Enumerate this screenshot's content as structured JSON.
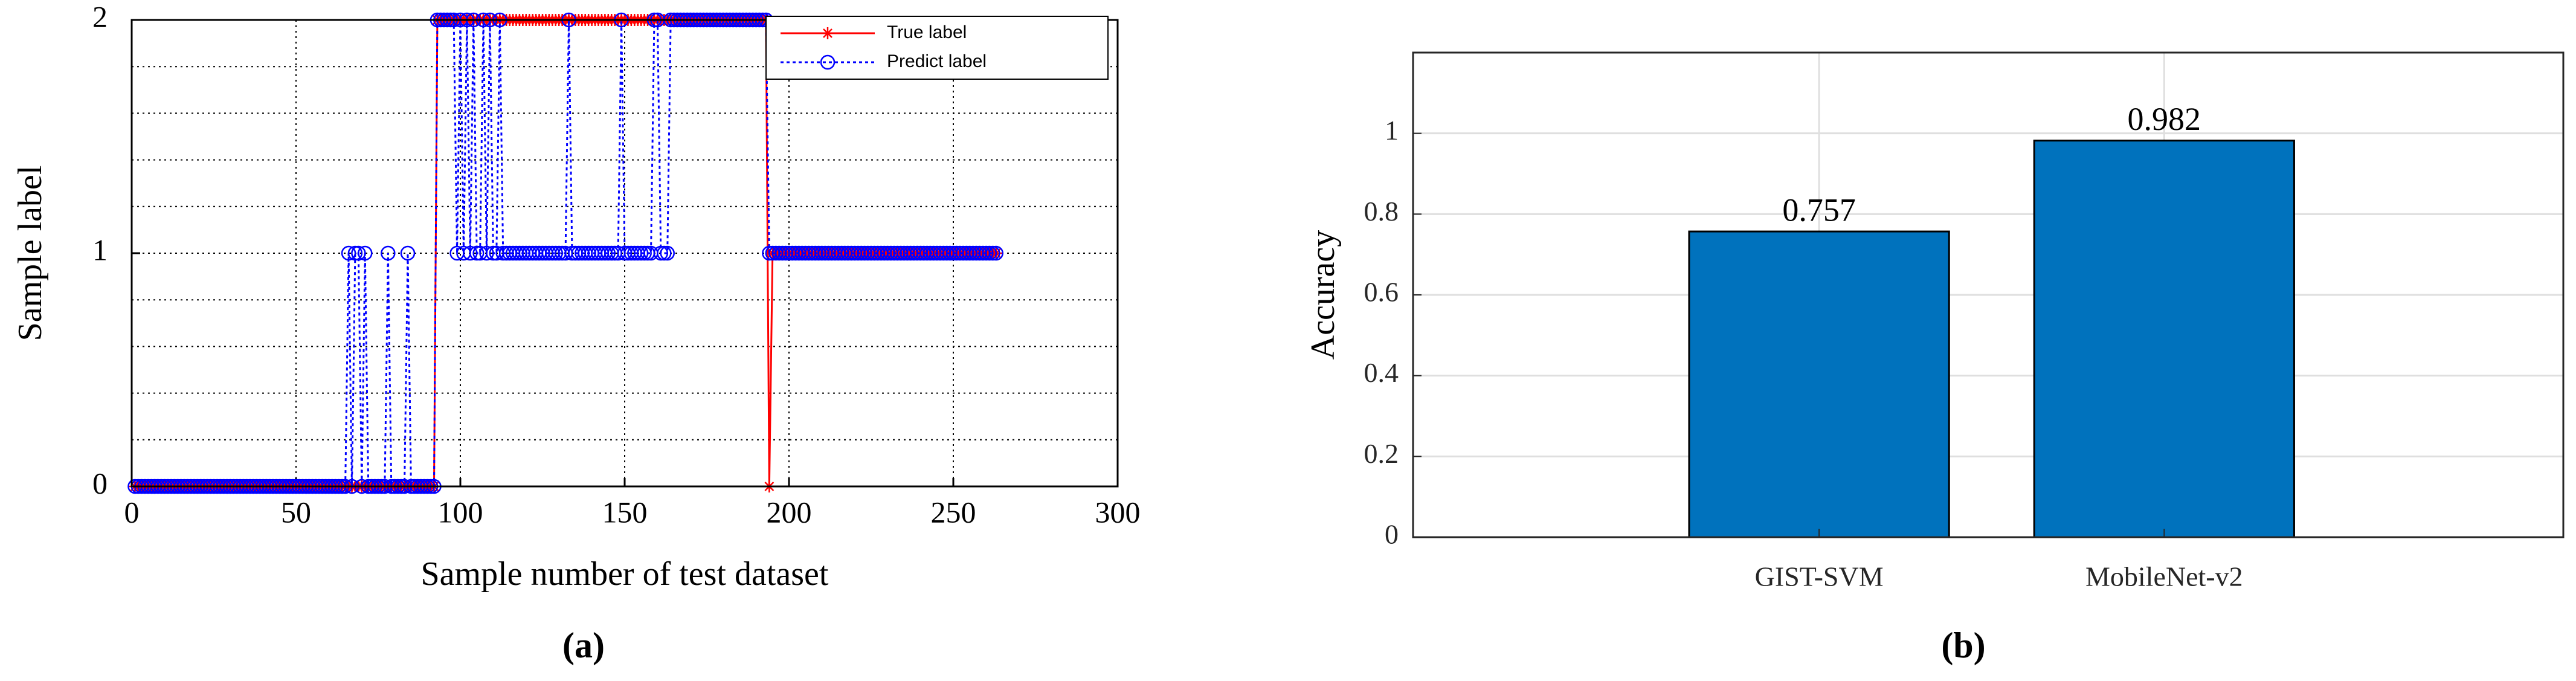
{
  "chart_data": [
    {
      "type": "line",
      "xlabel": "Sample number of test dataset",
      "ylabel": "Sample label",
      "caption": "(a)",
      "xlim": [
        0,
        300
      ],
      "xticks": [
        0,
        50,
        100,
        150,
        200,
        250,
        300
      ],
      "ylim": [
        0,
        2
      ],
      "yticks": [
        0,
        1,
        2
      ],
      "y_minor_ticks": [
        0.2,
        0.4,
        0.6,
        0.8,
        1.2,
        1.4,
        1.6,
        1.8
      ],
      "grid": true,
      "legend": "upper right",
      "x": [
        1,
        2,
        3,
        4,
        5,
        6,
        7,
        8,
        9,
        10,
        11,
        12,
        13,
        14,
        15,
        16,
        17,
        18,
        19,
        20,
        21,
        22,
        23,
        24,
        25,
        26,
        27,
        28,
        29,
        30,
        31,
        32,
        33,
        34,
        35,
        36,
        37,
        38,
        39,
        40,
        41,
        42,
        43,
        44,
        45,
        46,
        47,
        48,
        49,
        50,
        51,
        52,
        53,
        54,
        55,
        56,
        57,
        58,
        59,
        60,
        61,
        62,
        63,
        64,
        65,
        66,
        67,
        68,
        69,
        70,
        71,
        72,
        73,
        74,
        75,
        76,
        77,
        78,
        79,
        80,
        81,
        82,
        83,
        84,
        85,
        86,
        87,
        88,
        89,
        90,
        91,
        92,
        93,
        94,
        95,
        96,
        97,
        98,
        99,
        100,
        101,
        102,
        103,
        104,
        105,
        106,
        107,
        108,
        109,
        110,
        111,
        112,
        113,
        114,
        115,
        116,
        117,
        118,
        119,
        120,
        121,
        122,
        123,
        124,
        125,
        126,
        127,
        128,
        129,
        130,
        131,
        132,
        133,
        134,
        135,
        136,
        137,
        138,
        139,
        140,
        141,
        142,
        143,
        144,
        145,
        146,
        147,
        148,
        149,
        150,
        151,
        152,
        153,
        154,
        155,
        156,
        157,
        158,
        159,
        160,
        161,
        162,
        163,
        164,
        165,
        166,
        167,
        168,
        169,
        170,
        171,
        172,
        173,
        174,
        175,
        176,
        177,
        178,
        179,
        180,
        181,
        182,
        183,
        184,
        185,
        186,
        187,
        188,
        189,
        190,
        191,
        192,
        193,
        194,
        195,
        196,
        197,
        198,
        199,
        200,
        201,
        202,
        203,
        204,
        205,
        206,
        207,
        208,
        209,
        210,
        211,
        212,
        213,
        214,
        215,
        216,
        217,
        218,
        219,
        220,
        221,
        222,
        223,
        224,
        225,
        226,
        227,
        228,
        229,
        230,
        231,
        232,
        233,
        234,
        235,
        236,
        237,
        238,
        239,
        240,
        241,
        242,
        243,
        244,
        245,
        246,
        247,
        248,
        249,
        250,
        251,
        252,
        253,
        254,
        255,
        256,
        257,
        258,
        259,
        260,
        261,
        262,
        263
      ],
      "series": [
        {
          "name": "True label",
          "color": "#ff0000",
          "marker": "*",
          "line_style": "solid",
          "values": [
            0,
            0,
            0,
            0,
            0,
            0,
            0,
            0,
            0,
            0,
            0,
            0,
            0,
            0,
            0,
            0,
            0,
            0,
            0,
            0,
            0,
            0,
            0,
            0,
            0,
            0,
            0,
            0,
            0,
            0,
            0,
            0,
            0,
            0,
            0,
            0,
            0,
            0,
            0,
            0,
            0,
            0,
            0,
            0,
            0,
            0,
            0,
            0,
            0,
            0,
            0,
            0,
            0,
            0,
            0,
            0,
            0,
            0,
            0,
            0,
            0,
            0,
            0,
            0,
            0,
            0,
            0,
            0,
            0,
            0,
            0,
            0,
            0,
            0,
            0,
            0,
            0,
            0,
            0,
            0,
            0,
            0,
            0,
            0,
            0,
            0,
            0,
            0,
            0,
            0,
            0,
            0,
            2,
            2,
            2,
            2,
            2,
            2,
            2,
            2,
            2,
            2,
            2,
            2,
            2,
            2,
            2,
            2,
            2,
            2,
            2,
            2,
            2,
            2,
            2,
            2,
            2,
            2,
            2,
            2,
            2,
            2,
            2,
            2,
            2,
            2,
            2,
            2,
            2,
            2,
            2,
            2,
            2,
            2,
            2,
            2,
            2,
            2,
            2,
            2,
            2,
            2,
            2,
            2,
            2,
            2,
            2,
            2,
            2,
            2,
            2,
            2,
            2,
            2,
            2,
            2,
            2,
            2,
            2,
            2,
            2,
            2,
            2,
            2,
            2,
            2,
            2,
            2,
            2,
            2,
            2,
            2,
            2,
            2,
            2,
            2,
            2,
            2,
            2,
            2,
            2,
            2,
            2,
            2,
            2,
            2,
            2,
            2,
            2,
            2,
            2,
            2,
            2,
            0,
            1,
            1,
            1,
            1,
            1,
            1,
            1,
            1,
            1,
            1,
            1,
            1,
            1,
            1,
            1,
            1,
            1,
            1,
            1,
            1,
            1,
            1,
            1,
            1,
            1,
            1,
            1,
            1,
            1,
            1,
            1,
            1,
            1,
            1,
            1,
            1,
            1,
            1,
            1,
            1,
            1,
            1,
            1,
            1,
            1,
            1,
            1,
            1,
            1,
            1,
            1,
            1,
            1,
            1,
            1,
            1,
            1,
            1,
            1,
            1,
            1,
            1,
            1,
            1,
            1,
            1,
            1,
            1,
            1
          ]
        },
        {
          "name": "Predict label",
          "color": "#0000ff",
          "marker": "o",
          "line_style": "dotted",
          "values": [
            0,
            0,
            0,
            0,
            0,
            0,
            0,
            0,
            0,
            0,
            0,
            0,
            0,
            0,
            0,
            0,
            0,
            0,
            0,
            0,
            0,
            0,
            0,
            0,
            0,
            0,
            0,
            0,
            0,
            0,
            0,
            0,
            0,
            0,
            0,
            0,
            0,
            0,
            0,
            0,
            0,
            0,
            0,
            0,
            0,
            0,
            0,
            0,
            0,
            0,
            0,
            0,
            0,
            0,
            0,
            0,
            0,
            0,
            0,
            0,
            0,
            0,
            0,
            0,
            0,
            1,
            0,
            1,
            1,
            0,
            1,
            0,
            0,
            0,
            0,
            0,
            0,
            1,
            0,
            0,
            0,
            0,
            0,
            1,
            0,
            0,
            0,
            0,
            0,
            0,
            0,
            0,
            2,
            2,
            2,
            2,
            2,
            2,
            1,
            2,
            1,
            2,
            1,
            2,
            1,
            1,
            2,
            1,
            2,
            1,
            1,
            2,
            1,
            1,
            1,
            1,
            1,
            1,
            1,
            1,
            1,
            1,
            1,
            1,
            1,
            1,
            1,
            1,
            1,
            1,
            1,
            1,
            2,
            1,
            1,
            1,
            1,
            1,
            1,
            1,
            1,
            1,
            1,
            1,
            1,
            1,
            1,
            1,
            2,
            1,
            1,
            1,
            1,
            1,
            1,
            1,
            1,
            1,
            2,
            2,
            1,
            1,
            1,
            2,
            2,
            2,
            2,
            2,
            2,
            2,
            2,
            2,
            2,
            2,
            2,
            2,
            2,
            2,
            2,
            2,
            2,
            2,
            2,
            2,
            2,
            2,
            2,
            2,
            2,
            2,
            2,
            2,
            2,
            1,
            1,
            1,
            1,
            1,
            1,
            1,
            1,
            1,
            1,
            1,
            1,
            1,
            1,
            1,
            1,
            1,
            1,
            1,
            1,
            1,
            1,
            1,
            1,
            1,
            1,
            1,
            1,
            1,
            1,
            1,
            1,
            1,
            1,
            1,
            1,
            1,
            1,
            1,
            1,
            1,
            1,
            1,
            1,
            1,
            1,
            1,
            1,
            1,
            1,
            1,
            1,
            1,
            1,
            1,
            1,
            1,
            1,
            1,
            1,
            1,
            1,
            1,
            1,
            1,
            1,
            1,
            1,
            1,
            1
          ]
        }
      ]
    },
    {
      "type": "bar",
      "ylabel": "Accuracy",
      "caption": "(b)",
      "categories": [
        "GIST-SVM",
        "MobileNet-v2"
      ],
      "values": [
        0.757,
        0.982
      ],
      "color": "#0072bd",
      "ylim": [
        0,
        1.2
      ],
      "yticks": [
        0,
        0.2,
        0.4,
        0.6,
        0.8,
        1
      ],
      "grid": true
    }
  ]
}
